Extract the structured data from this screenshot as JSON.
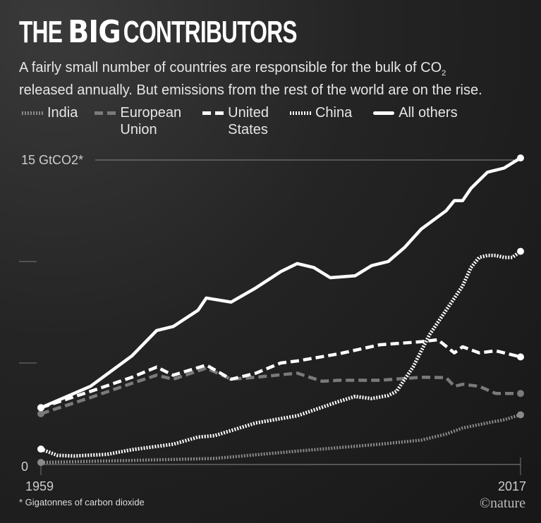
{
  "title": {
    "pre": "THE",
    "big": "BIG",
    "post": "CONTRIBUTORS"
  },
  "subtitle": {
    "line1": "A fairly small number of countries are responsible for the bulk of CO",
    "sub": "2",
    "line2": "released annually. But emissions from the rest of the world are on the rise."
  },
  "footnote": "* Gigatonnes of carbon dioxide",
  "credit": "©nature",
  "chart_data": {
    "type": "line",
    "title": "THE BIG CONTRIBUTORS",
    "ylabel": "GtCO2",
    "ylim": [
      0,
      15
    ],
    "xlim": [
      1959,
      2017
    ],
    "y_top_label": "15 GtCO2*",
    "y_zero_label": "0",
    "x_tick_labels": [
      "1959",
      "2017"
    ],
    "y_ticks": [
      0,
      5,
      10,
      15
    ],
    "legend": "top",
    "series": [
      {
        "name": "India",
        "style": "dotted-thin",
        "color": "#8a8a8a",
        "legend_lines": [
          "India"
        ],
        "points": [
          [
            1959,
            0.1
          ],
          [
            1970,
            0.2
          ],
          [
            1980,
            0.3
          ],
          [
            1990,
            0.66
          ],
          [
            2000,
            1.0
          ],
          [
            2005,
            1.2
          ],
          [
            2008,
            1.5
          ],
          [
            2010,
            1.8
          ],
          [
            2013,
            2.05
          ],
          [
            2015,
            2.2
          ],
          [
            2017,
            2.45
          ]
        ]
      },
      {
        "name": "European Union",
        "style": "dashed",
        "color": "#7a7a7a",
        "legend_lines": [
          "European",
          "Union"
        ],
        "points": [
          [
            1959,
            2.5
          ],
          [
            1965,
            3.3
          ],
          [
            1970,
            4.0
          ],
          [
            1973,
            4.4
          ],
          [
            1975,
            4.2
          ],
          [
            1979,
            4.75
          ],
          [
            1982,
            4.2
          ],
          [
            1985,
            4.3
          ],
          [
            1990,
            4.5
          ],
          [
            1993,
            4.1
          ],
          [
            1995,
            4.15
          ],
          [
            2000,
            4.15
          ],
          [
            2005,
            4.3
          ],
          [
            2008,
            4.28
          ],
          [
            2009,
            3.85
          ],
          [
            2010,
            3.95
          ],
          [
            2012,
            3.85
          ],
          [
            2014,
            3.5
          ],
          [
            2017,
            3.5
          ]
        ]
      },
      {
        "name": "United States",
        "style": "dashed",
        "color": "#ffffff",
        "legend_lines": [
          "United",
          "States"
        ],
        "points": [
          [
            1959,
            2.8
          ],
          [
            1965,
            3.6
          ],
          [
            1970,
            4.3
          ],
          [
            1973,
            4.8
          ],
          [
            1975,
            4.4
          ],
          [
            1979,
            4.9
          ],
          [
            1982,
            4.2
          ],
          [
            1985,
            4.5
          ],
          [
            1988,
            5.0
          ],
          [
            1990,
            5.1
          ],
          [
            1995,
            5.45
          ],
          [
            2000,
            5.9
          ],
          [
            2005,
            6.05
          ],
          [
            2007,
            6.15
          ],
          [
            2009,
            5.5
          ],
          [
            2010,
            5.8
          ],
          [
            2012,
            5.5
          ],
          [
            2014,
            5.6
          ],
          [
            2017,
            5.3
          ]
        ]
      },
      {
        "name": "China",
        "style": "dotted",
        "color": "#ffffff",
        "legend_lines": [
          "China"
        ],
        "points": [
          [
            1959,
            0.76
          ],
          [
            1961,
            0.45
          ],
          [
            1963,
            0.42
          ],
          [
            1967,
            0.5
          ],
          [
            1970,
            0.73
          ],
          [
            1975,
            1.0
          ],
          [
            1978,
            1.35
          ],
          [
            1980,
            1.42
          ],
          [
            1985,
            2.05
          ],
          [
            1990,
            2.4
          ],
          [
            1995,
            3.1
          ],
          [
            1997,
            3.35
          ],
          [
            1999,
            3.25
          ],
          [
            2001,
            3.4
          ],
          [
            2002,
            3.6
          ],
          [
            2004,
            4.8
          ],
          [
            2006,
            6.4
          ],
          [
            2008,
            7.6
          ],
          [
            2010,
            8.8
          ],
          [
            2011,
            9.7
          ],
          [
            2012,
            10.2
          ],
          [
            2013,
            10.3
          ],
          [
            2014,
            10.3
          ],
          [
            2015,
            10.2
          ],
          [
            2016,
            10.2
          ],
          [
            2017,
            10.5
          ]
        ]
      },
      {
        "name": "All others",
        "style": "solid",
        "color": "#ffffff",
        "legend_lines": [
          "All others"
        ],
        "points": [
          [
            1959,
            2.8
          ],
          [
            1965,
            3.85
          ],
          [
            1970,
            5.35
          ],
          [
            1973,
            6.6
          ],
          [
            1975,
            6.8
          ],
          [
            1978,
            7.6
          ],
          [
            1979,
            8.2
          ],
          [
            1982,
            8.0
          ],
          [
            1985,
            8.7
          ],
          [
            1988,
            9.5
          ],
          [
            1990,
            9.9
          ],
          [
            1992,
            9.7
          ],
          [
            1994,
            9.2
          ],
          [
            1997,
            9.3
          ],
          [
            1999,
            9.8
          ],
          [
            2001,
            10.0
          ],
          [
            2003,
            10.7
          ],
          [
            2005,
            11.6
          ],
          [
            2008,
            12.5
          ],
          [
            2009,
            13.0
          ],
          [
            2010,
            13.0
          ],
          [
            2011,
            13.6
          ],
          [
            2013,
            14.4
          ],
          [
            2015,
            14.6
          ],
          [
            2017,
            15.1
          ]
        ]
      }
    ]
  }
}
